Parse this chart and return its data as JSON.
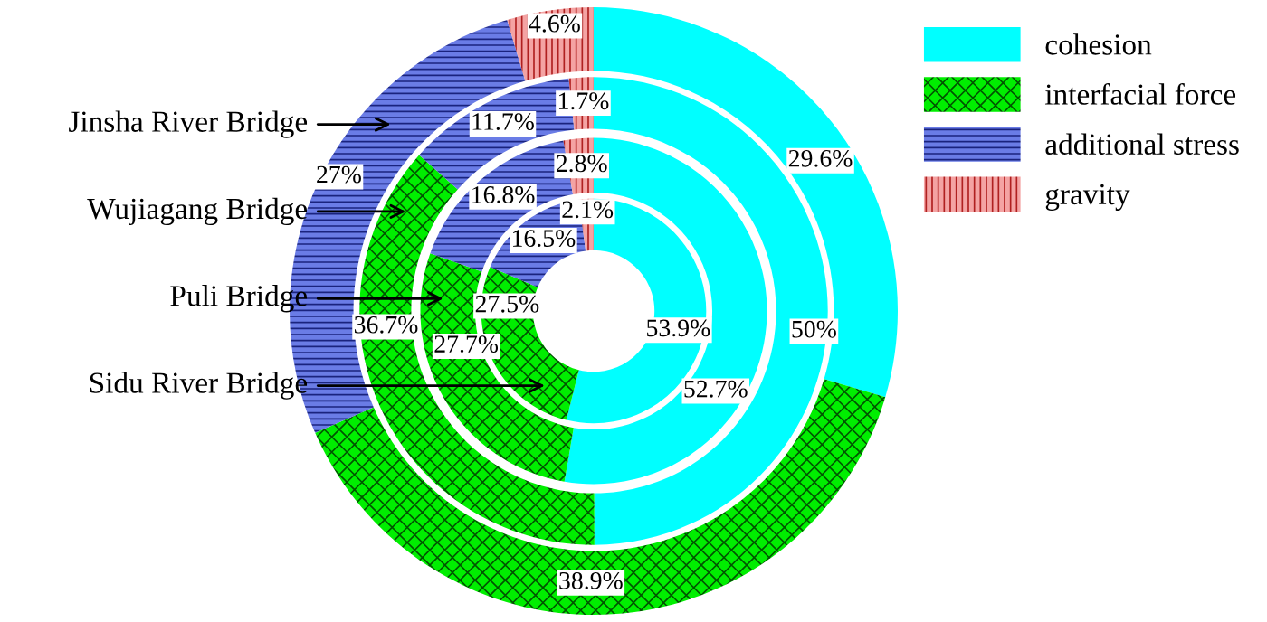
{
  "chart_data": {
    "type": "donut",
    "categories": [
      "cohesion",
      "interfacial force",
      "additional stress",
      "gravity"
    ],
    "colors": [
      "#00ffff",
      "#00ee00",
      "#6a7ce6",
      "#f4a3a3"
    ],
    "legend": "top right",
    "series": [
      {
        "name": "Jinsha River Bridge",
        "values": [
          29.6,
          38.9,
          27,
          4.6
        ],
        "value_labels": [
          "29.6%",
          "38.9%",
          "27%",
          "4.6%"
        ]
      },
      {
        "name": "Wujiagang Bridge",
        "values": [
          50,
          36.7,
          11.7,
          1.7
        ],
        "value_labels": [
          "50%",
          "36.7%",
          "11.7%",
          "1.7%"
        ]
      },
      {
        "name": "Puli Bridge",
        "values": [
          52.7,
          27.7,
          16.8,
          2.8
        ],
        "value_labels": [
          "52.7%",
          "27.7%",
          "16.8%",
          "2.8%"
        ]
      },
      {
        "name": "Sidu River Bridge",
        "values": [
          53.9,
          27.5,
          16.5,
          2.1
        ],
        "value_labels": [
          "53.9%",
          "27.5%",
          "16.5%",
          "2.1%"
        ]
      }
    ]
  }
}
